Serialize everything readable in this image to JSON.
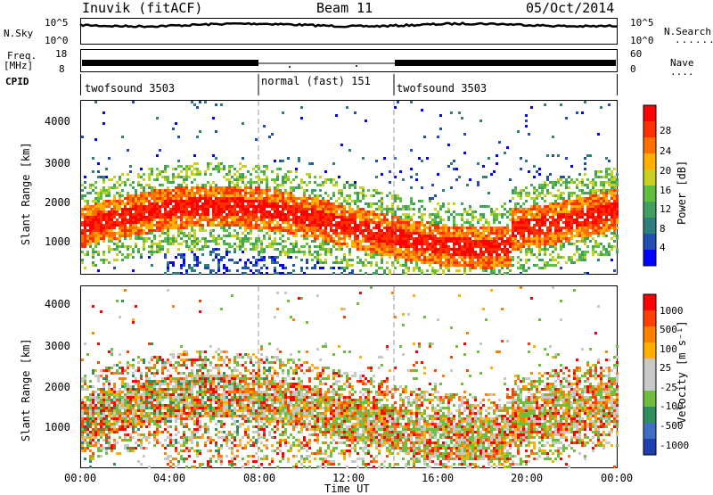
{
  "header": {
    "station": "Inuvik (fitACF)",
    "beam": "Beam 11",
    "date": "05/Oct/2014"
  },
  "strips": {
    "nsky_label": "N.Sky",
    "nsky_top": "10^5",
    "nsky_bottom": "10^0",
    "nsearch_top": "10^5",
    "nsearch_bottom": "10^0",
    "nsearch_label": "N.Search",
    "freq_label": "Freq.",
    "freq_unit": "[MHz]",
    "freq_top": "18",
    "freq_bottom": "8",
    "nave_top": "60",
    "nave_bottom": "0",
    "nave_label": "Nave",
    "cpid_label": "CPID"
  },
  "cpid_segments": [
    {
      "label": "twofsound 3503"
    },
    {
      "label": "normal (fast) 151"
    },
    {
      "label": "twofsound 3503"
    }
  ],
  "chart_data": [
    {
      "type": "heatmap",
      "name": "power",
      "ylabel": "Slant Range [km]",
      "yticks": [
        "1000",
        "2000",
        "3000",
        "4000"
      ],
      "xticks": [
        "00:00",
        "04:00",
        "08:00",
        "12:00",
        "16:00",
        "20:00",
        "00:00"
      ],
      "colorbar_label": "Power [dB]",
      "colorbar_ticks": [
        "28",
        "24",
        "20",
        "16",
        "12",
        "8",
        "4"
      ],
      "colors": [
        "#0000ff",
        "#1f4fb0",
        "#2f7f7f",
        "#3fa060",
        "#5fbf3f",
        "#c8d020",
        "#ffb000",
        "#ff7000",
        "#ff3000",
        "#ff0000"
      ]
    },
    {
      "type": "heatmap",
      "name": "velocity",
      "ylabel": "Slant Range [km]",
      "yticks": [
        "1000",
        "2000",
        "3000",
        "4000"
      ],
      "xticks": [
        "00:00",
        "04:00",
        "08:00",
        "12:00",
        "16:00",
        "20:00",
        "00:00"
      ],
      "xlabel": "Time UT",
      "colorbar_label": "Velocity [m s⁻¹]",
      "colorbar_ticks": [
        "1000",
        "500",
        "100",
        "25",
        "-25",
        "-100",
        "-500",
        "-1000"
      ],
      "colors": [
        "#1f3fb0",
        "#3f6fc0",
        "#2f8f5f",
        "#6fbf3f",
        "#c8c8c8",
        "#c8c8c8",
        "#ffb000",
        "#ff8000",
        "#ff4000",
        "#ff0000"
      ]
    }
  ]
}
